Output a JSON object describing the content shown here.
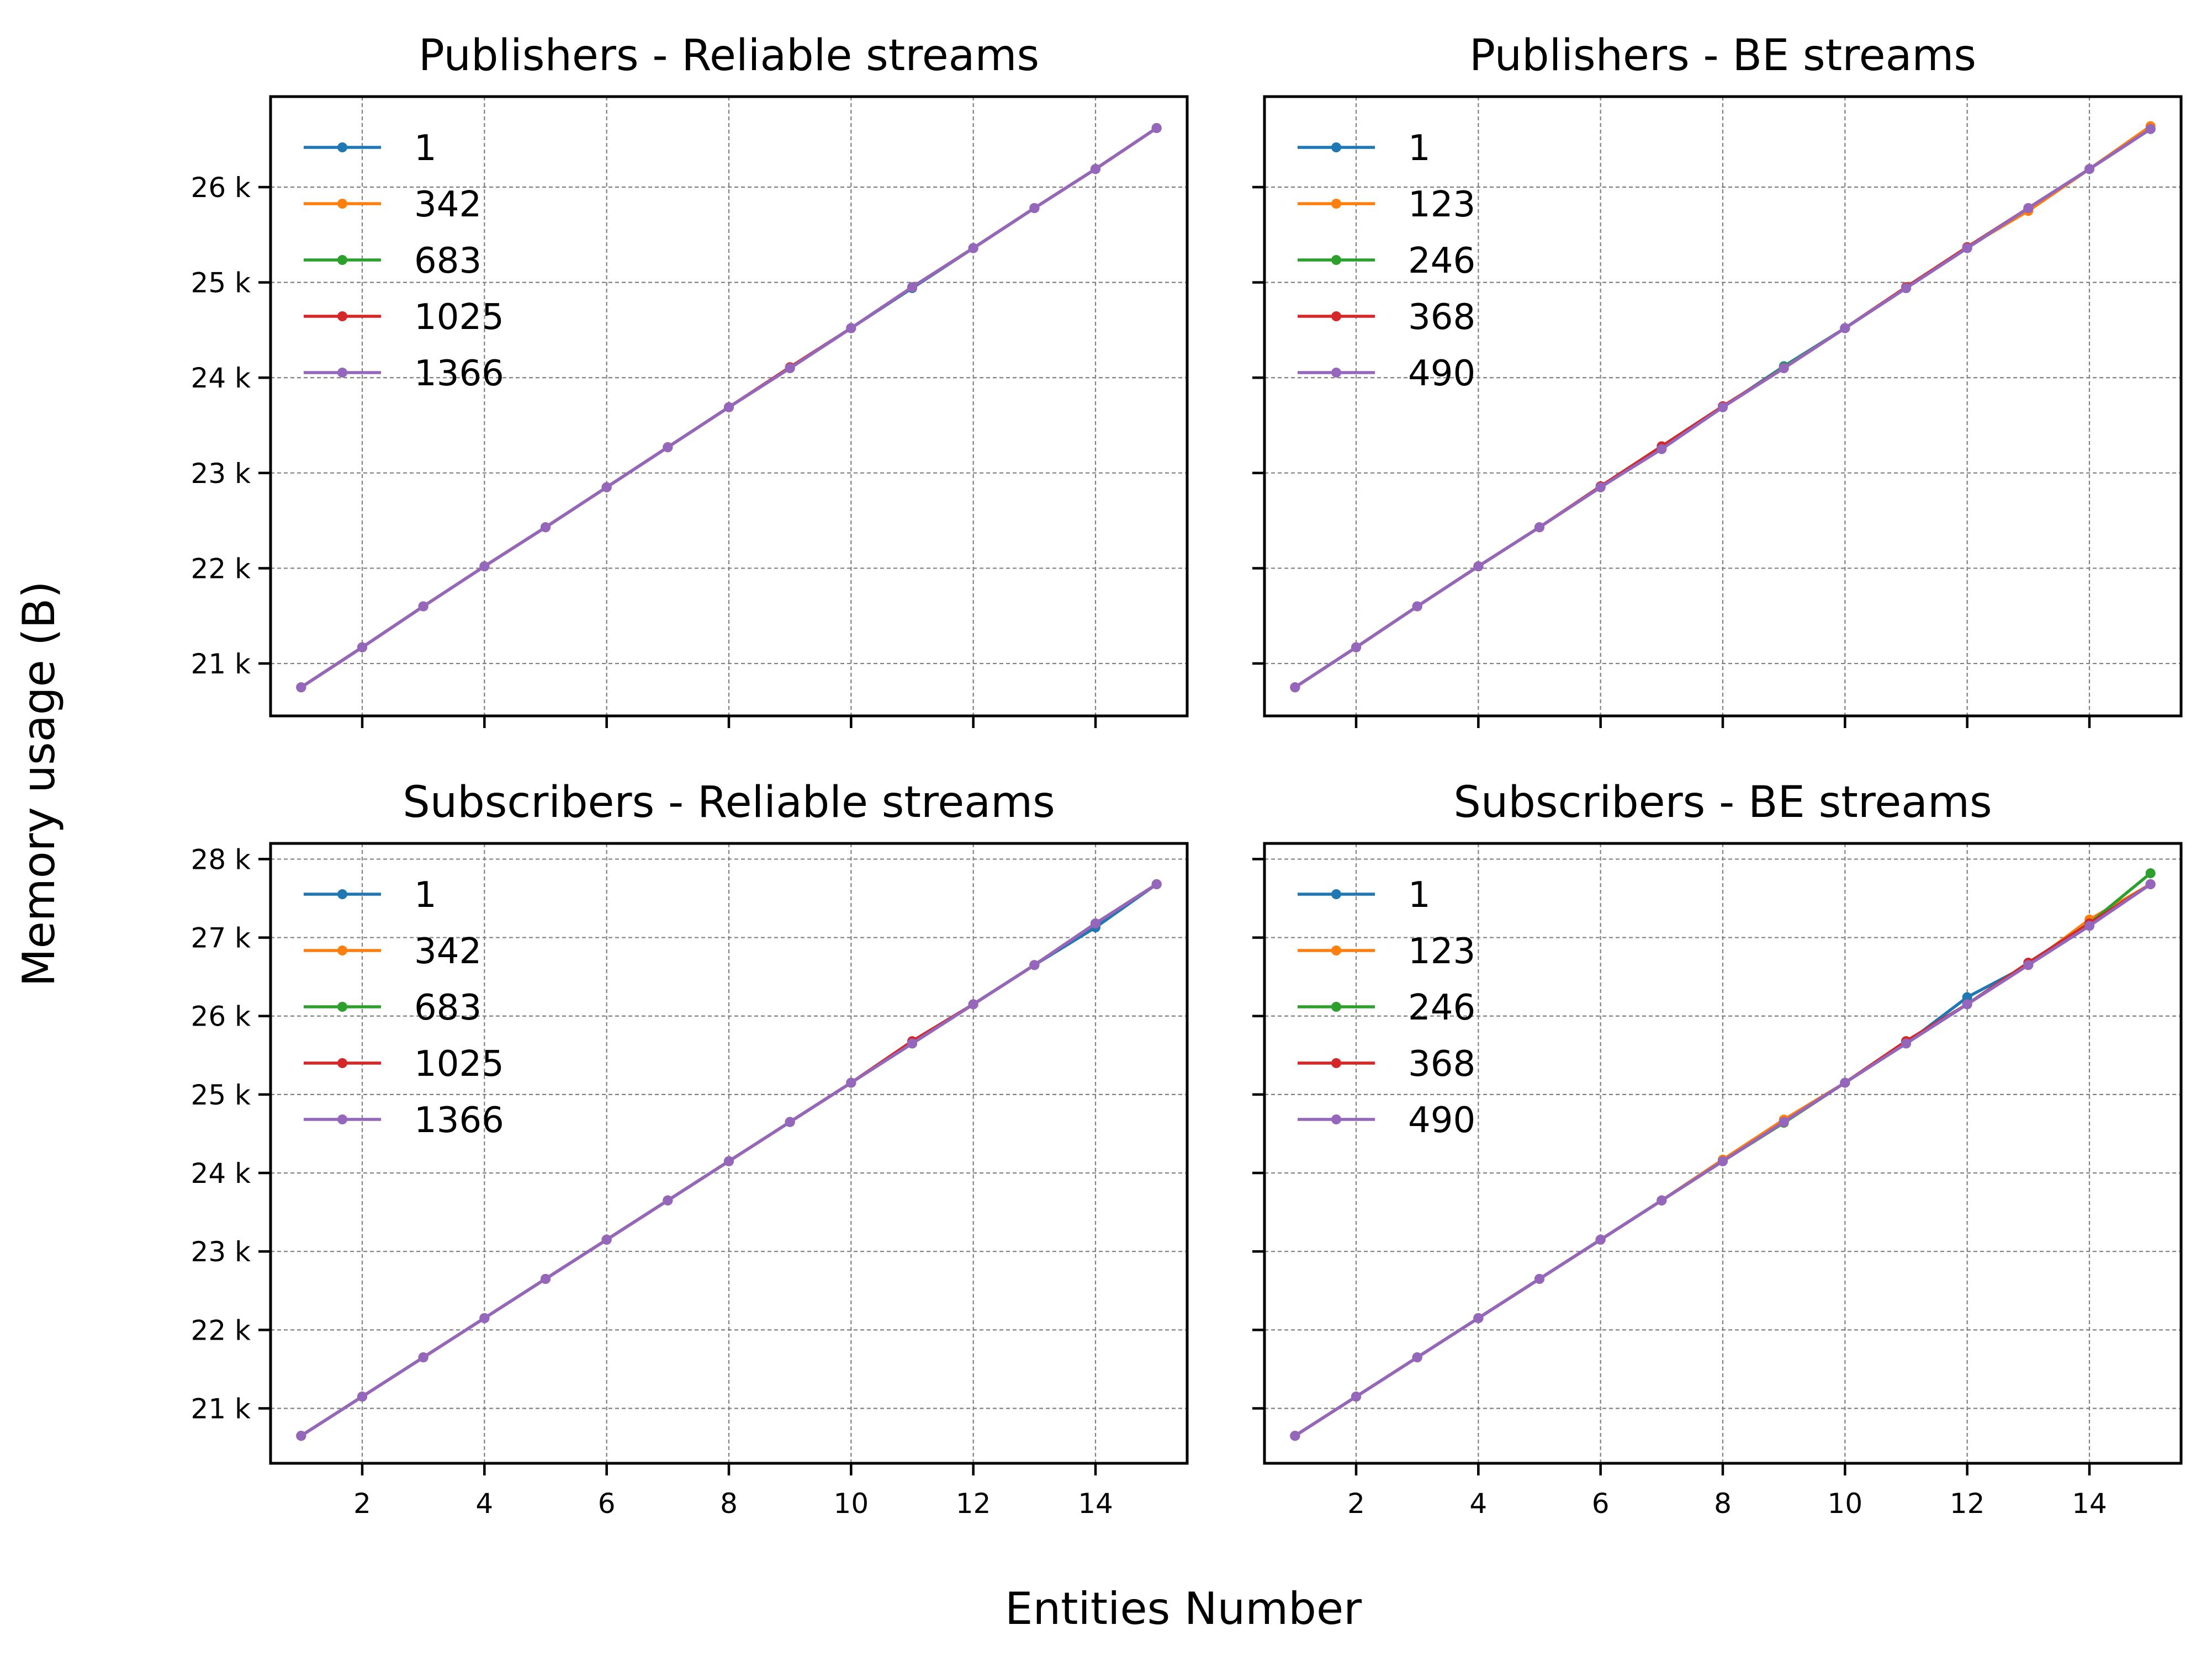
{
  "figure": {
    "xlabel": "Entities Number",
    "ylabel": "Memory usage (B)"
  },
  "colors": {
    "blue": "#1f77b4",
    "orange": "#ff7f0e",
    "green": "#2ca02c",
    "red": "#d62728",
    "purple": "#9467bd"
  },
  "chart_data": [
    {
      "type": "line",
      "title": "Publishers - Reliable streams",
      "xlabel": "",
      "ylabel": "",
      "xlim": [
        0.5,
        15.5
      ],
      "ylim": [
        20450,
        26950
      ],
      "xticks": [
        2,
        4,
        6,
        8,
        10,
        12,
        14
      ],
      "show_xtick_labels": false,
      "yticks": [
        21000,
        22000,
        23000,
        24000,
        25000,
        26000
      ],
      "ytick_labels": [
        "21 k",
        "22 k",
        "23 k",
        "24 k",
        "25 k",
        "26 k"
      ],
      "show_ytick_labels": true,
      "grid": true,
      "legend_position": "top-left",
      "x": [
        1,
        2,
        3,
        4,
        5,
        6,
        7,
        8,
        9,
        10,
        11,
        12,
        13,
        14,
        15
      ],
      "series": [
        {
          "name": "1",
          "color": "#1f77b4",
          "values": [
            20750,
            21170,
            21600,
            22020,
            22430,
            22850,
            23270,
            23690,
            24100,
            24520,
            24940,
            25360,
            25780,
            26190,
            26620
          ]
        },
        {
          "name": "342",
          "color": "#ff7f0e",
          "values": [
            20750,
            21170,
            21600,
            22020,
            22430,
            22850,
            23270,
            23690,
            24100,
            24520,
            24950,
            25360,
            25780,
            26190,
            26620
          ]
        },
        {
          "name": "683",
          "color": "#2ca02c",
          "values": [
            20750,
            21170,
            21600,
            22020,
            22430,
            22850,
            23270,
            23690,
            24100,
            24520,
            24950,
            25360,
            25780,
            26190,
            26620
          ]
        },
        {
          "name": "1025",
          "color": "#d62728",
          "values": [
            20750,
            21170,
            21600,
            22020,
            22430,
            22850,
            23270,
            23690,
            24110,
            24520,
            24950,
            25360,
            25780,
            26190,
            26620
          ]
        },
        {
          "name": "1366",
          "color": "#9467bd",
          "values": [
            20750,
            21170,
            21600,
            22020,
            22430,
            22850,
            23270,
            23690,
            24100,
            24520,
            24950,
            25360,
            25780,
            26190,
            26620
          ]
        }
      ]
    },
    {
      "type": "line",
      "title": "Publishers - BE streams",
      "xlabel": "",
      "ylabel": "",
      "xlim": [
        0.5,
        15.5
      ],
      "ylim": [
        20450,
        26950
      ],
      "xticks": [
        2,
        4,
        6,
        8,
        10,
        12,
        14
      ],
      "show_xtick_labels": false,
      "yticks": [
        21000,
        22000,
        23000,
        24000,
        25000,
        26000
      ],
      "ytick_labels": [
        "21 k",
        "22 k",
        "23 k",
        "24 k",
        "25 k",
        "26 k"
      ],
      "show_ytick_labels": false,
      "grid": true,
      "legend_position": "top-left",
      "x": [
        1,
        2,
        3,
        4,
        5,
        6,
        7,
        8,
        9,
        10,
        11,
        12,
        13,
        14,
        15
      ],
      "series": [
        {
          "name": "1",
          "color": "#1f77b4",
          "values": [
            20750,
            21170,
            21600,
            22020,
            22430,
            22850,
            23260,
            23690,
            24120,
            24520,
            24940,
            25360,
            25770,
            26190,
            26610
          ]
        },
        {
          "name": "123",
          "color": "#ff7f0e",
          "values": [
            20750,
            21170,
            21600,
            22020,
            22430,
            22850,
            23270,
            23700,
            24100,
            24520,
            24950,
            25370,
            25750,
            26190,
            26640
          ]
        },
        {
          "name": "246",
          "color": "#2ca02c",
          "values": [
            20750,
            21170,
            21600,
            22020,
            22430,
            22850,
            23260,
            23690,
            24110,
            24520,
            24940,
            25360,
            25780,
            26190,
            26610
          ]
        },
        {
          "name": "368",
          "color": "#d62728",
          "values": [
            20750,
            21170,
            21600,
            22020,
            22430,
            22860,
            23280,
            23700,
            24100,
            24520,
            24950,
            25370,
            25780,
            26190,
            26610
          ]
        },
        {
          "name": "490",
          "color": "#9467bd",
          "values": [
            20750,
            21170,
            21600,
            22020,
            22430,
            22850,
            23250,
            23690,
            24100,
            24520,
            24940,
            25360,
            25780,
            26190,
            26610
          ]
        }
      ]
    },
    {
      "type": "line",
      "title": "Subscribers - Reliable streams",
      "xlabel": "",
      "ylabel": "",
      "xlim": [
        0.5,
        15.5
      ],
      "ylim": [
        20300,
        28200
      ],
      "xticks": [
        2,
        4,
        6,
        8,
        10,
        12,
        14
      ],
      "show_xtick_labels": true,
      "yticks": [
        21000,
        22000,
        23000,
        24000,
        25000,
        26000,
        27000,
        28000
      ],
      "ytick_labels": [
        "21 k",
        "22 k",
        "23 k",
        "24 k",
        "25 k",
        "26 k",
        "27 k",
        "28 k"
      ],
      "show_ytick_labels": true,
      "grid": true,
      "legend_position": "top-left",
      "x": [
        1,
        2,
        3,
        4,
        5,
        6,
        7,
        8,
        9,
        10,
        11,
        12,
        13,
        14,
        15
      ],
      "series": [
        {
          "name": "1",
          "color": "#1f77b4",
          "values": [
            20650,
            21150,
            21650,
            22150,
            22650,
            23150,
            23650,
            24150,
            24650,
            25150,
            25650,
            26150,
            26650,
            27130,
            27680
          ]
        },
        {
          "name": "342",
          "color": "#ff7f0e",
          "values": [
            20650,
            21150,
            21650,
            22150,
            22650,
            23150,
            23650,
            24150,
            24650,
            25150,
            25650,
            26150,
            26650,
            27180,
            27680
          ]
        },
        {
          "name": "683",
          "color": "#2ca02c",
          "values": [
            20650,
            21150,
            21650,
            22150,
            22650,
            23150,
            23650,
            24150,
            24650,
            25150,
            25650,
            26150,
            26650,
            27180,
            27680
          ]
        },
        {
          "name": "1025",
          "color": "#d62728",
          "values": [
            20650,
            21150,
            21650,
            22150,
            22650,
            23150,
            23650,
            24150,
            24650,
            25150,
            25680,
            26150,
            26650,
            27180,
            27680
          ]
        },
        {
          "name": "1366",
          "color": "#9467bd",
          "values": [
            20650,
            21150,
            21650,
            22150,
            22650,
            23150,
            23650,
            24150,
            24650,
            25150,
            25650,
            26150,
            26650,
            27180,
            27680
          ]
        }
      ]
    },
    {
      "type": "line",
      "title": "Subscribers - BE streams",
      "xlabel": "",
      "ylabel": "",
      "xlim": [
        0.5,
        15.5
      ],
      "ylim": [
        20300,
        28200
      ],
      "xticks": [
        2,
        4,
        6,
        8,
        10,
        12,
        14
      ],
      "show_xtick_labels": true,
      "yticks": [
        21000,
        22000,
        23000,
        24000,
        25000,
        26000,
        27000,
        28000
      ],
      "ytick_labels": [
        "21 k",
        "22 k",
        "23 k",
        "24 k",
        "25 k",
        "26 k",
        "27 k",
        "28 k"
      ],
      "show_ytick_labels": false,
      "grid": true,
      "legend_position": "top-left",
      "x": [
        1,
        2,
        3,
        4,
        5,
        6,
        7,
        8,
        9,
        10,
        11,
        12,
        13,
        14,
        15
      ],
      "series": [
        {
          "name": "1",
          "color": "#1f77b4",
          "values": [
            20650,
            21150,
            21650,
            22150,
            22650,
            23150,
            23650,
            24150,
            24650,
            25150,
            25650,
            26240,
            26650,
            27150,
            27680
          ]
        },
        {
          "name": "123",
          "color": "#ff7f0e",
          "values": [
            20650,
            21150,
            21650,
            22150,
            22650,
            23150,
            23650,
            24170,
            24680,
            25150,
            25680,
            26150,
            26650,
            27230,
            27680
          ]
        },
        {
          "name": "246",
          "color": "#2ca02c",
          "values": [
            20650,
            21150,
            21650,
            22150,
            22650,
            23150,
            23650,
            24150,
            24640,
            25150,
            25650,
            26150,
            26680,
            27180,
            27820
          ]
        },
        {
          "name": "368",
          "color": "#d62728",
          "values": [
            20650,
            21150,
            21650,
            22150,
            22650,
            23150,
            23650,
            24150,
            24650,
            25150,
            25680,
            26150,
            26680,
            27180,
            27680
          ]
        },
        {
          "name": "490",
          "color": "#9467bd",
          "values": [
            20650,
            21150,
            21650,
            22150,
            22650,
            23150,
            23650,
            24150,
            24650,
            25150,
            25650,
            26150,
            26650,
            27150,
            27680
          ]
        }
      ]
    }
  ]
}
